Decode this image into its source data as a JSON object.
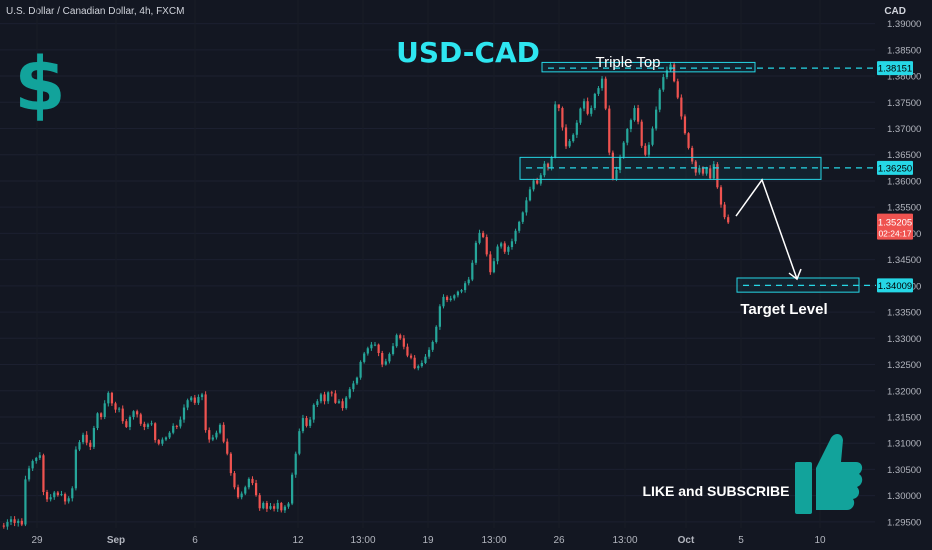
{
  "header": {
    "symbol_label": "U.S. Dollar / Canadian Dollar, 4h, FXCM",
    "currency": "CAD"
  },
  "annotations": {
    "title": "USD-CAD",
    "dollar_symbol": "$",
    "triple_top": "Triple Top",
    "target_level": "Target Level",
    "cta": "LIKE and SUBSCRIBE",
    "thumb_icon": "thumbs-up-icon"
  },
  "colors": {
    "background": "#131722",
    "up": "#26a69a",
    "down": "#ef5350",
    "accent": "#26d7e6",
    "title": "#2ee6f0",
    "dollar": "#12a39b",
    "text": "#d1d4dc"
  },
  "chart_data": {
    "type": "candlestick",
    "title": "USD-CAD",
    "ylim": [
      1.2925,
      1.3945
    ],
    "y_ticks": [
      "1.39000",
      "1.38500",
      "1.38000",
      "1.37500",
      "1.37000",
      "1.36500",
      "1.36000",
      "1.35500",
      "1.35000",
      "1.34500",
      "1.34000",
      "1.33500",
      "1.33000",
      "1.32500",
      "1.32000",
      "1.31500",
      "1.31000",
      "1.30500",
      "1.30000",
      "1.29500"
    ],
    "x_ticks": [
      "29",
      "Sep",
      "6",
      "12",
      "13:00",
      "19",
      "13:00",
      "26",
      "13:00",
      "Oct",
      "5",
      "10"
    ],
    "price_labels": [
      {
        "value": 1.38151,
        "label": "1.38151",
        "kind": "level"
      },
      {
        "value": 1.3625,
        "label": "1.36250",
        "kind": "level"
      },
      {
        "value": 1.34009,
        "label": "1.34009",
        "kind": "level"
      },
      {
        "value": 1.35205,
        "label": "1.35205",
        "sub": "02:24:17",
        "kind": "last"
      }
    ],
    "zones": [
      {
        "label": "Triple Top",
        "top": 1.3826,
        "bottom": 1.3808
      },
      {
        "label": "",
        "top": 1.3645,
        "bottom": 1.3603
      },
      {
        "label": "Target Level",
        "top": 1.3415,
        "bottom": 1.3388
      }
    ],
    "projection": [
      1.3533,
      1.3602,
      1.3413
    ],
    "candles": [
      [
        1.2943,
        1.2941,
        1.2948,
        1.2937
      ],
      [
        1.2941,
        1.295,
        1.2955,
        1.2935
      ],
      [
        1.295,
        1.2955,
        1.2961,
        1.2944
      ],
      [
        1.2955,
        1.2948,
        1.2961,
        1.2942
      ],
      [
        1.2948,
        1.2952,
        1.2956,
        1.2941
      ],
      [
        1.2952,
        1.2945,
        1.2957,
        1.2942
      ],
      [
        1.2945,
        1.3031,
        1.3038,
        1.2942
      ],
      [
        1.3031,
        1.3052,
        1.3057,
        1.3027
      ],
      [
        1.3052,
        1.3066,
        1.3069,
        1.3047
      ],
      [
        1.3066,
        1.3072,
        1.3074,
        1.3061
      ],
      [
        1.3072,
        1.3077,
        1.3083,
        1.3068
      ],
      [
        1.3077,
        1.3007,
        1.308,
        1.3001
      ],
      [
        1.3007,
        1.2993,
        1.3011,
        1.2988
      ],
      [
        1.2993,
        1.2997,
        1.3003,
        1.2989
      ],
      [
        1.2997,
        1.3006,
        1.3009,
        1.2992
      ],
      [
        1.3006,
        1.3001,
        1.3009,
        1.2998
      ],
      [
        1.3001,
        1.3003,
        1.3009,
        1.2999
      ],
      [
        1.3003,
        1.2989,
        1.3006,
        1.2983
      ],
      [
        1.2989,
        1.2995,
        1.2999,
        1.2985
      ],
      [
        1.2995,
        1.3014,
        1.3018,
        1.2989
      ],
      [
        1.3014,
        1.3088,
        1.3094,
        1.301
      ],
      [
        1.3088,
        1.3102,
        1.3106,
        1.3085
      ],
      [
        1.3102,
        1.3116,
        1.312,
        1.3098
      ],
      [
        1.3116,
        1.3101,
        1.3123,
        1.3096
      ],
      [
        1.3101,
        1.3093,
        1.3106,
        1.3087
      ],
      [
        1.3093,
        1.3129,
        1.3133,
        1.3089
      ],
      [
        1.3129,
        1.3157,
        1.3159,
        1.3125
      ],
      [
        1.3157,
        1.315,
        1.3159,
        1.3145
      ],
      [
        1.315,
        1.3176,
        1.3182,
        1.3146
      ],
      [
        1.3176,
        1.3196,
        1.3199,
        1.317
      ],
      [
        1.3196,
        1.3176,
        1.3198,
        1.3171
      ],
      [
        1.3176,
        1.3164,
        1.3179,
        1.3158
      ],
      [
        1.3164,
        1.3166,
        1.3169,
        1.3159
      ],
      [
        1.3166,
        1.3142,
        1.3172,
        1.3137
      ],
      [
        1.3142,
        1.3131,
        1.3146,
        1.3129
      ],
      [
        1.3131,
        1.315,
        1.3153,
        1.3125
      ],
      [
        1.315,
        1.3161,
        1.3163,
        1.3145
      ],
      [
        1.3161,
        1.3155,
        1.3164,
        1.3149
      ],
      [
        1.3155,
        1.3137,
        1.3158,
        1.3133
      ],
      [
        1.3137,
        1.3131,
        1.3141,
        1.3125
      ],
      [
        1.3131,
        1.3136,
        1.3139,
        1.3127
      ],
      [
        1.3136,
        1.3138,
        1.3143,
        1.3133
      ],
      [
        1.3138,
        1.3106,
        1.314,
        1.3101
      ],
      [
        1.3106,
        1.3099,
        1.3108,
        1.3096
      ],
      [
        1.3099,
        1.3107,
        1.3111,
        1.3095
      ],
      [
        1.3107,
        1.3111,
        1.3113,
        1.3104
      ],
      [
        1.3111,
        1.312,
        1.3123,
        1.3108
      ],
      [
        1.312,
        1.3133,
        1.3138,
        1.3117
      ],
      [
        1.3133,
        1.3132,
        1.3135,
        1.3127
      ],
      [
        1.3132,
        1.3145,
        1.3151,
        1.3128
      ],
      [
        1.3145,
        1.3168,
        1.3174,
        1.3139
      ],
      [
        1.3168,
        1.3182,
        1.3185,
        1.3163
      ],
      [
        1.3182,
        1.3187,
        1.319,
        1.3179
      ],
      [
        1.3187,
        1.3177,
        1.3192,
        1.3173
      ],
      [
        1.3177,
        1.3188,
        1.3193,
        1.3173
      ],
      [
        1.3188,
        1.3193,
        1.3196,
        1.3182
      ],
      [
        1.3193,
        1.3125,
        1.3199,
        1.312
      ],
      [
        1.3125,
        1.3107,
        1.313,
        1.3101
      ],
      [
        1.3107,
        1.3111,
        1.3116,
        1.3104
      ],
      [
        1.3111,
        1.312,
        1.3124,
        1.3107
      ],
      [
        1.312,
        1.3135,
        1.3138,
        1.3117
      ],
      [
        1.3135,
        1.3103,
        1.314,
        1.31
      ],
      [
        1.3103,
        1.308,
        1.3109,
        1.3077
      ],
      [
        1.308,
        1.3043,
        1.3083,
        1.3038
      ],
      [
        1.3043,
        1.3016,
        1.3047,
        1.3012
      ],
      [
        1.3016,
        1.2997,
        1.3021,
        1.2994
      ],
      [
        1.2997,
        1.3004,
        1.3008,
        1.2993
      ],
      [
        1.3004,
        1.3016,
        1.3019,
        1.3001
      ],
      [
        1.3016,
        1.3032,
        1.3035,
        1.3012
      ],
      [
        1.3032,
        1.3024,
        1.3037,
        1.302
      ],
      [
        1.3024,
        1.3001,
        1.303,
        1.2998
      ],
      [
        1.3001,
        1.2976,
        1.3005,
        1.2971
      ],
      [
        1.2976,
        1.2986,
        1.2989,
        1.2974
      ],
      [
        1.2986,
        1.2975,
        1.299,
        1.2969
      ],
      [
        1.2975,
        1.298,
        1.2986,
        1.2973
      ],
      [
        1.298,
        1.2975,
        1.2985,
        1.297
      ],
      [
        1.2975,
        1.2986,
        1.2992,
        1.2969
      ],
      [
        1.2986,
        1.2972,
        1.2988,
        1.2968
      ],
      [
        1.2972,
        1.2979,
        1.2982,
        1.2967
      ],
      [
        1.2979,
        1.2985,
        1.2988,
        1.2975
      ],
      [
        1.2985,
        1.304,
        1.3044,
        1.2982
      ],
      [
        1.304,
        1.308,
        1.3084,
        1.3034
      ],
      [
        1.308,
        1.3123,
        1.3128,
        1.3077
      ],
      [
        1.3123,
        1.3148,
        1.3154,
        1.3119
      ],
      [
        1.3148,
        1.3133,
        1.3152,
        1.313
      ],
      [
        1.3133,
        1.3145,
        1.315,
        1.3129
      ],
      [
        1.3145,
        1.3173,
        1.3176,
        1.3139
      ],
      [
        1.3173,
        1.318,
        1.3184,
        1.3169
      ],
      [
        1.318,
        1.3193,
        1.3196,
        1.3176
      ],
      [
        1.3193,
        1.318,
        1.3198,
        1.3174
      ],
      [
        1.318,
        1.3197,
        1.3199,
        1.3175
      ],
      [
        1.3197,
        1.3195,
        1.32,
        1.3189
      ],
      [
        1.3195,
        1.3177,
        1.3201,
        1.3175
      ],
      [
        1.3177,
        1.318,
        1.3184,
        1.3175
      ],
      [
        1.318,
        1.3167,
        1.3185,
        1.3162
      ],
      [
        1.3167,
        1.3187,
        1.319,
        1.3164
      ],
      [
        1.3187,
        1.3203,
        1.3207,
        1.3184
      ],
      [
        1.3203,
        1.3214,
        1.3219,
        1.3198
      ],
      [
        1.3214,
        1.3225,
        1.3227,
        1.3211
      ],
      [
        1.3225,
        1.3255,
        1.3258,
        1.3221
      ],
      [
        1.3255,
        1.3271,
        1.3274,
        1.3252
      ],
      [
        1.3271,
        1.3281,
        1.3284,
        1.3267
      ],
      [
        1.3281,
        1.3288,
        1.3293,
        1.3276
      ],
      [
        1.3288,
        1.3288,
        1.3293,
        1.3285
      ],
      [
        1.3288,
        1.3272,
        1.329,
        1.3266
      ],
      [
        1.3272,
        1.325,
        1.3276,
        1.3245
      ],
      [
        1.325,
        1.3256,
        1.3261,
        1.3248
      ],
      [
        1.3256,
        1.327,
        1.3273,
        1.3252
      ],
      [
        1.327,
        1.3285,
        1.3291,
        1.3267
      ],
      [
        1.3285,
        1.3306,
        1.3309,
        1.3282
      ],
      [
        1.3306,
        1.33,
        1.3309,
        1.3297
      ],
      [
        1.33,
        1.3284,
        1.3306,
        1.3279
      ],
      [
        1.3284,
        1.3267,
        1.329,
        1.3264
      ],
      [
        1.3267,
        1.3263,
        1.3271,
        1.326
      ],
      [
        1.3263,
        1.3243,
        1.3268,
        1.3241
      ],
      [
        1.3243,
        1.3247,
        1.325,
        1.3239
      ],
      [
        1.3247,
        1.3253,
        1.3258,
        1.3244
      ],
      [
        1.3253,
        1.3265,
        1.327,
        1.3251
      ],
      [
        1.3265,
        1.3278,
        1.3283,
        1.3261
      ],
      [
        1.3278,
        1.3293,
        1.3296,
        1.3274
      ],
      [
        1.3293,
        1.3322,
        1.3325,
        1.329
      ],
      [
        1.3322,
        1.3361,
        1.3365,
        1.3316
      ],
      [
        1.3361,
        1.3379,
        1.3384,
        1.3357
      ],
      [
        1.3379,
        1.3373,
        1.3382,
        1.3369
      ],
      [
        1.3373,
        1.3376,
        1.3381,
        1.337
      ],
      [
        1.3376,
        1.3382,
        1.3384,
        1.3372
      ],
      [
        1.3382,
        1.3389,
        1.3391,
        1.3378
      ],
      [
        1.3389,
        1.3392,
        1.3394,
        1.3386
      ],
      [
        1.3392,
        1.3405,
        1.3409,
        1.3387
      ],
      [
        1.3405,
        1.3412,
        1.3417,
        1.3401
      ],
      [
        1.3412,
        1.3444,
        1.3449,
        1.3409
      ],
      [
        1.3444,
        1.3482,
        1.3486,
        1.344
      ],
      [
        1.3482,
        1.3501,
        1.3507,
        1.3479
      ],
      [
        1.3501,
        1.3493,
        1.3505,
        1.3491
      ],
      [
        1.3493,
        1.346,
        1.3498,
        1.3456
      ],
      [
        1.346,
        1.3426,
        1.3466,
        1.3421
      ],
      [
        1.3426,
        1.3447,
        1.3453,
        1.3424
      ],
      [
        1.3447,
        1.3475,
        1.3479,
        1.3441
      ],
      [
        1.3475,
        1.3481,
        1.3484,
        1.3471
      ],
      [
        1.3481,
        1.3465,
        1.3485,
        1.3461
      ],
      [
        1.3465,
        1.3474,
        1.3477,
        1.3459
      ],
      [
        1.3474,
        1.3485,
        1.349,
        1.3469
      ],
      [
        1.3485,
        1.3505,
        1.3509,
        1.348
      ],
      [
        1.3505,
        1.3522,
        1.3524,
        1.3501
      ],
      [
        1.3522,
        1.354,
        1.3542,
        1.3518
      ],
      [
        1.354,
        1.3563,
        1.3569,
        1.3534
      ],
      [
        1.3563,
        1.3584,
        1.3589,
        1.3561
      ],
      [
        1.3584,
        1.3601,
        1.3604,
        1.358
      ],
      [
        1.3601,
        1.3595,
        1.3606,
        1.3593
      ],
      [
        1.3595,
        1.3611,
        1.3615,
        1.3591
      ],
      [
        1.3611,
        1.3633,
        1.3638,
        1.3607
      ],
      [
        1.3633,
        1.3626,
        1.3635,
        1.362
      ],
      [
        1.3626,
        1.3645,
        1.3648,
        1.362
      ],
      [
        1.3645,
        1.3746,
        1.3752,
        1.3643
      ],
      [
        1.3746,
        1.3739,
        1.3744,
        1.3733
      ],
      [
        1.3739,
        1.3702,
        1.3742,
        1.3696
      ],
      [
        1.3702,
        1.3666,
        1.3708,
        1.3661
      ],
      [
        1.3666,
        1.3676,
        1.368,
        1.3663
      ],
      [
        1.3676,
        1.3688,
        1.3691,
        1.3673
      ],
      [
        1.3688,
        1.3711,
        1.3716,
        1.3682
      ],
      [
        1.3711,
        1.3738,
        1.374,
        1.3707
      ],
      [
        1.3738,
        1.3752,
        1.3757,
        1.3733
      ],
      [
        1.3752,
        1.3728,
        1.3759,
        1.3725
      ],
      [
        1.3728,
        1.3739,
        1.3744,
        1.3723
      ],
      [
        1.3739,
        1.3766,
        1.3768,
        1.3735
      ],
      [
        1.3766,
        1.3777,
        1.3781,
        1.3762
      ],
      [
        1.3777,
        1.3795,
        1.38,
        1.3772
      ],
      [
        1.3795,
        1.3738,
        1.3799,
        1.3735
      ],
      [
        1.3738,
        1.3654,
        1.3744,
        1.3649
      ],
      [
        1.3654,
        1.3604,
        1.3658,
        1.3601
      ],
      [
        1.3604,
        1.3621,
        1.3627,
        1.36
      ],
      [
        1.3621,
        1.3646,
        1.365,
        1.3615
      ],
      [
        1.3646,
        1.3673,
        1.3676,
        1.3642
      ],
      [
        1.3673,
        1.3699,
        1.3701,
        1.3668
      ],
      [
        1.3699,
        1.3716,
        1.3719,
        1.3693
      ],
      [
        1.3716,
        1.3739,
        1.3744,
        1.3713
      ],
      [
        1.3739,
        1.3713,
        1.3745,
        1.3708
      ],
      [
        1.3713,
        1.3667,
        1.3717,
        1.3663
      ],
      [
        1.3667,
        1.365,
        1.3672,
        1.3647
      ],
      [
        1.365,
        1.3669,
        1.3674,
        1.3645
      ],
      [
        1.3669,
        1.37,
        1.3704,
        1.3666
      ],
      [
        1.37,
        1.3736,
        1.3742,
        1.3696
      ],
      [
        1.3736,
        1.3774,
        1.3777,
        1.3731
      ],
      [
        1.3774,
        1.3798,
        1.3804,
        1.377
      ],
      [
        1.3798,
        1.3811,
        1.3818,
        1.3794
      ],
      [
        1.3811,
        1.3822,
        1.3827,
        1.3808
      ],
      [
        1.3822,
        1.379,
        1.3827,
        1.3788
      ],
      [
        1.379,
        1.3759,
        1.3795,
        1.3756
      ],
      [
        1.3759,
        1.3723,
        1.3765,
        1.3717
      ],
      [
        1.3723,
        1.3691,
        1.3727,
        1.3688
      ],
      [
        1.3691,
        1.3663,
        1.3693,
        1.366
      ],
      [
        1.3663,
        1.3637,
        1.3667,
        1.3632
      ],
      [
        1.3637,
        1.3616,
        1.364,
        1.361
      ],
      [
        1.3616,
        1.3625,
        1.363,
        1.3612
      ],
      [
        1.3625,
        1.3614,
        1.3628,
        1.361
      ],
      [
        1.3614,
        1.3624,
        1.3627,
        1.361
      ],
      [
        1.3624,
        1.3605,
        1.363,
        1.3602
      ],
      [
        1.3605,
        1.3632,
        1.3638,
        1.3602
      ],
      [
        1.3632,
        1.3588,
        1.3636,
        1.3585
      ],
      [
        1.3588,
        1.3555,
        1.3592,
        1.3549
      ],
      [
        1.3555,
        1.3531,
        1.356,
        1.3527
      ],
      [
        1.3531,
        1.3521,
        1.3536,
        1.3518
      ]
    ]
  }
}
